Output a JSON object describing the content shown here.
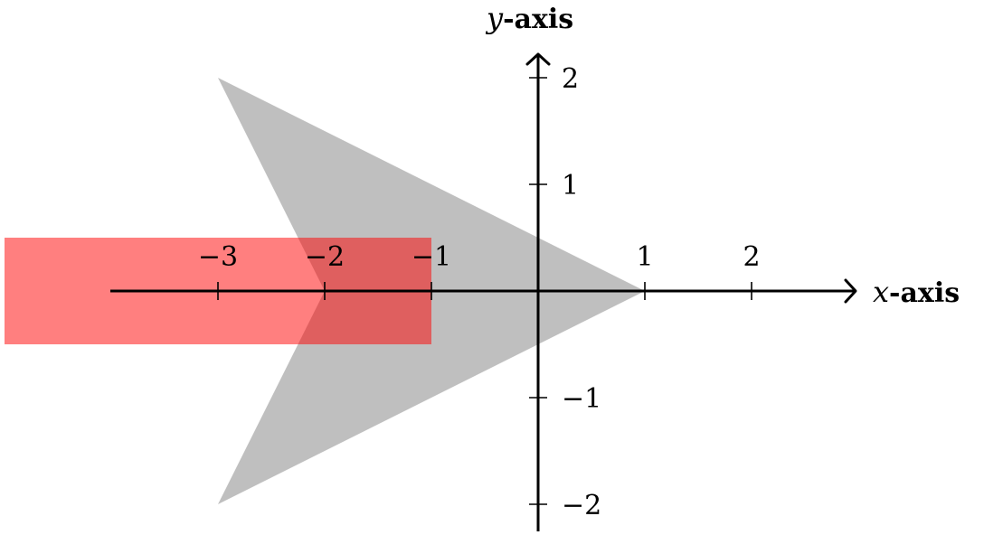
{
  "diagram": {
    "x_axis": {
      "title_var": "x",
      "title_word": "-axis",
      "range": [
        -4,
        3
      ],
      "ticks": [
        {
          "value": -3,
          "label": "−3"
        },
        {
          "value": -2,
          "label": "−2"
        },
        {
          "value": -1,
          "label": "−1"
        },
        {
          "value": 1,
          "label": "1"
        },
        {
          "value": 2,
          "label": "2"
        }
      ]
    },
    "y_axis": {
      "title_var": "y",
      "title_word": "-axis",
      "range": [
        -2.25,
        2.2
      ],
      "ticks": [
        {
          "value": 2,
          "label": "2"
        },
        {
          "value": 1,
          "label": "1"
        },
        {
          "value": -1,
          "label": "−1"
        },
        {
          "value": -2,
          "label": "−2"
        }
      ]
    },
    "shapes": [
      {
        "name": "gray-arrowhead-shape",
        "kind": "polygon",
        "points": [
          [
            -3,
            2
          ],
          [
            1,
            0
          ],
          [
            -3,
            -2
          ],
          [
            -2,
            0
          ]
        ],
        "color": "#bfbfbf",
        "opacity": 1
      },
      {
        "name": "red-rectangle-shape",
        "kind": "polygon",
        "points": [
          [
            -5,
            0.5
          ],
          [
            -1,
            0.5
          ],
          [
            -1,
            -0.5
          ],
          [
            -5,
            -0.5
          ]
        ],
        "color": "#ff0000",
        "opacity": 0.5
      }
    ]
  }
}
